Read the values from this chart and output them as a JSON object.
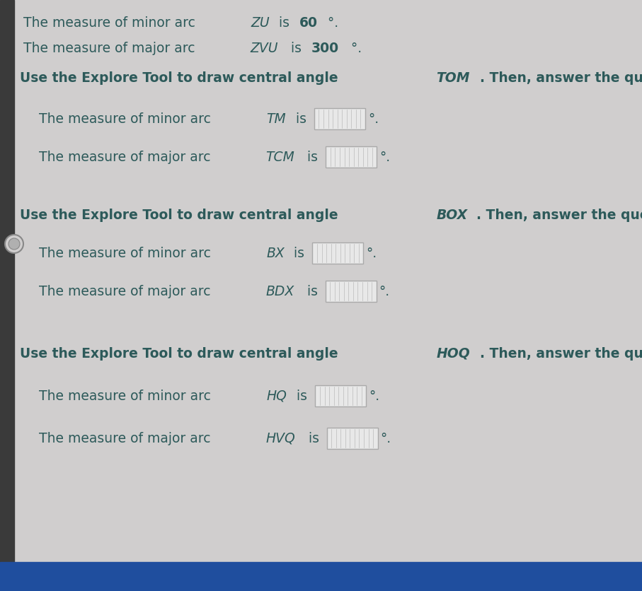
{
  "bg_color": "#d0cece",
  "left_bar_color": "#3a3a3a",
  "bottom_bar_color": "#1f4e9e",
  "text_color": "#2d5a5a",
  "bold_color": "#2d5a5a",
  "circle_fill": "#d0cece",
  "circle_edge": "#888888",
  "box_fill": "#e8e8e8",
  "box_edge": "#aaaaaa",
  "box_hatch_color": "#bbbbbb",
  "lines": [
    {
      "pre": "The measure of minor arc ",
      "arc": "ZU",
      "mid": " is ",
      "num": "60",
      "bold_num": true,
      "post": "°."
    },
    {
      "pre": "The measure of major arc ",
      "arc": "ZVU",
      "mid": " is ",
      "num": "300",
      "bold_num": true,
      "post": "°."
    }
  ],
  "sections": [
    {
      "header_pre": "Use the Explore Tool to draw central angle ",
      "header_angle": "TOM",
      "header_post": ". Then, answer the questions.",
      "questions": [
        {
          "pre": "The measure of minor arc ",
          "arc": "TM",
          "post": " is"
        },
        {
          "pre": "The measure of major arc ",
          "arc": "TCM",
          "post": " is"
        }
      ]
    },
    {
      "header_pre": "Use the Explore Tool to draw central angle ",
      "header_angle": "BOX",
      "header_post": ". Then, answer the questions.",
      "questions": [
        {
          "pre": "The measure of minor arc ",
          "arc": "BX",
          "post": " is"
        },
        {
          "pre": "The measure of major arc ",
          "arc": "BDX",
          "post": " is"
        }
      ]
    },
    {
      "header_pre": "Use the Explore Tool to draw central angle ",
      "header_angle": "HOQ",
      "header_post": ". Then, answer the questions.",
      "questions": [
        {
          "pre": "The measure of minor arc ",
          "arc": "HQ",
          "post": " is"
        },
        {
          "pre": "The measure of major arc ",
          "arc": "HVQ",
          "post": " is"
        }
      ]
    }
  ],
  "fig_width": 9.07,
  "fig_height": 8.36,
  "dpi": 100
}
